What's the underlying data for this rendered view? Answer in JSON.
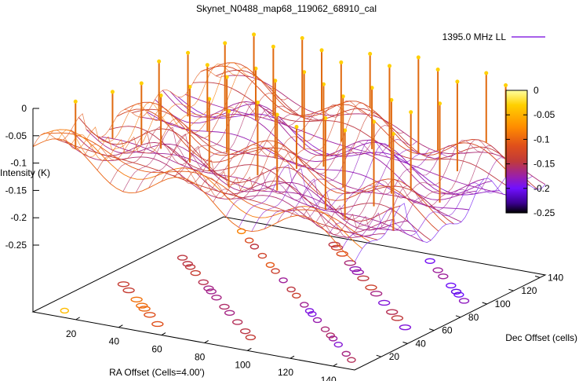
{
  "chart_data": {
    "type": "surface3d",
    "title": "Skynet_N0488_map68_119062_68910_cal",
    "legend": {
      "label": "1395.0 MHz LL",
      "color": "#8a2be2"
    },
    "zlabel": "Intensity (K)",
    "xlabel": "RA Offset (Cells=4.00')",
    "ylabel": "Dec Offset (cells)",
    "z_ticks": [
      "0",
      "-0.05",
      "-0.1",
      "-0.15",
      "-0.2",
      "-0.25"
    ],
    "x_ticks": [
      "20",
      "40",
      "60",
      "80",
      "100",
      "120",
      "140"
    ],
    "y_ticks": [
      "20",
      "40",
      "60",
      "80",
      "100",
      "120",
      "140"
    ],
    "colorbar": {
      "ticks": [
        "0",
        "-0.05",
        "-0.1",
        "-0.15",
        "-0.2",
        "-0.25"
      ],
      "range": [
        -0.25,
        0
      ],
      "colors": [
        "#ffffa0",
        "#ffd000",
        "#ff8c00",
        "#e0501a",
        "#c03a3a",
        "#9b20a8",
        "#7010ff",
        "#3b0090",
        "#000000"
      ]
    },
    "xlim": [
      0,
      150
    ],
    "ylim": [
      0,
      150
    ],
    "zlim": [
      -0.25,
      0
    ]
  }
}
